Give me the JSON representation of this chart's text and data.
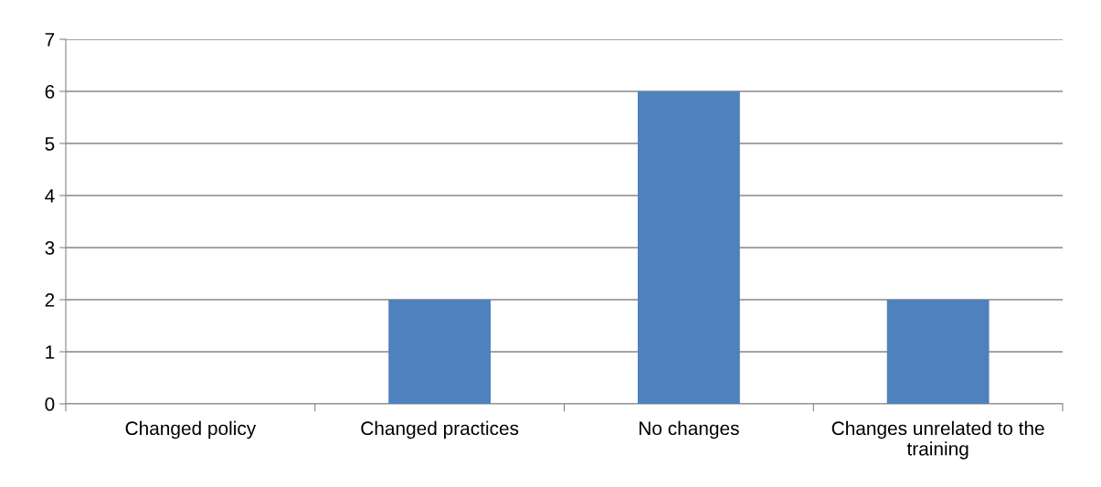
{
  "chart_data": {
    "type": "bar",
    "categories": [
      "Changed policy",
      "Changed practices",
      "No changes",
      "Changes unrelated to the training"
    ],
    "values": [
      0,
      2,
      6,
      2
    ],
    "color": "#4f81bd",
    "ylim": [
      0,
      7
    ],
    "yticks": [
      0,
      1,
      2,
      3,
      4,
      5,
      6,
      7
    ],
    "grid": "y",
    "legend": false
  }
}
